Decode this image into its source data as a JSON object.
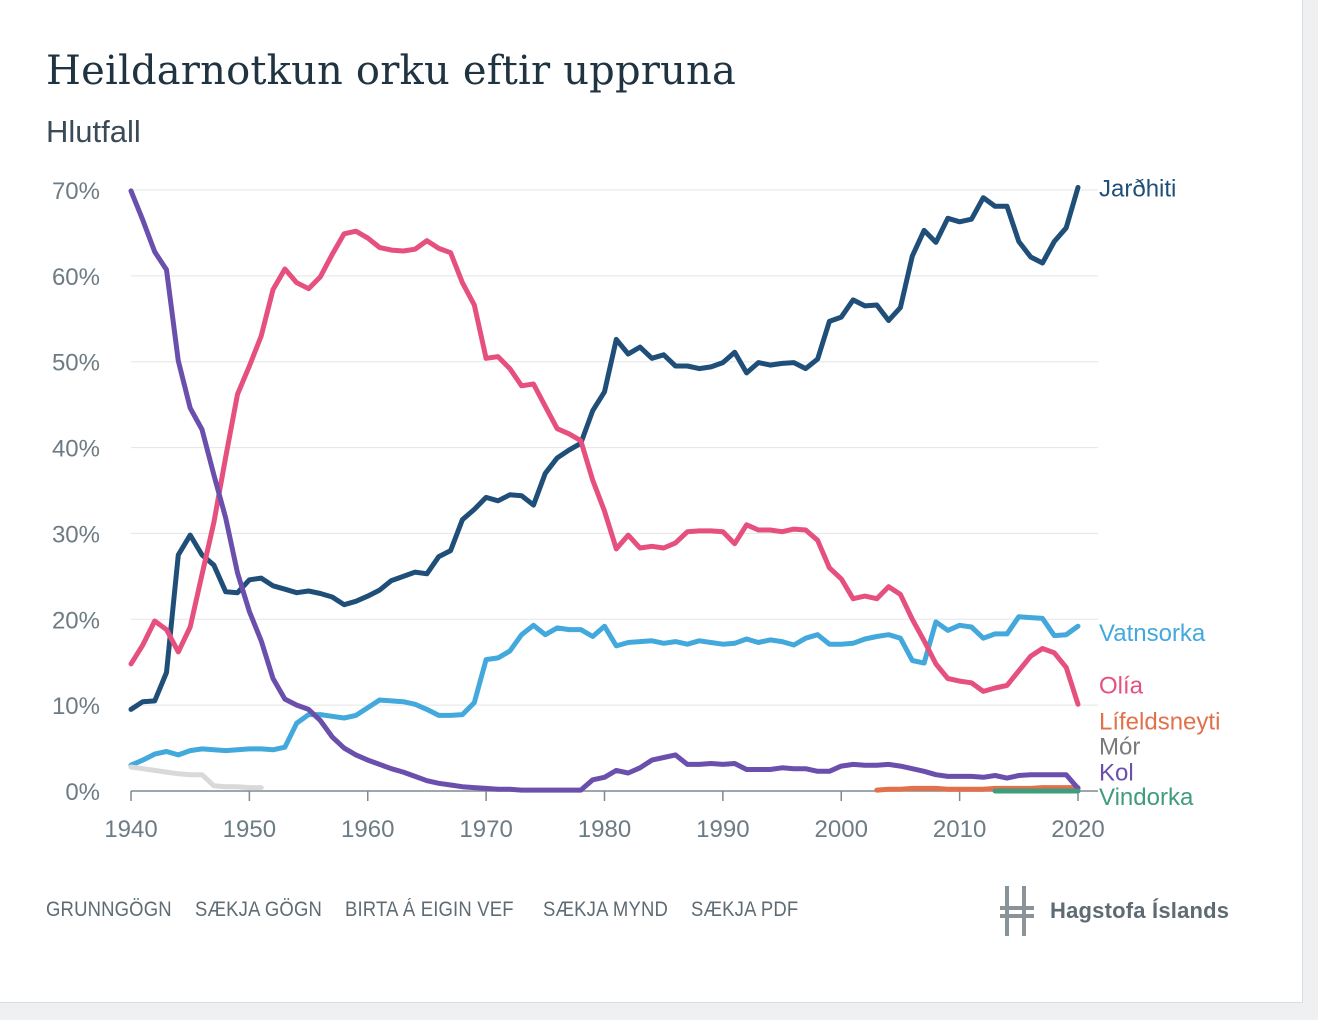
{
  "title": "Heildarnotkun orku eftir uppruna",
  "subtitle": "Hlutfall",
  "footer": {
    "links": [
      "GRUNNGÖGN",
      "SÆKJA GÖGN",
      "BIRTA Á EIGIN VEF",
      "SÆKJA MYND",
      "SÆKJA PDF"
    ],
    "brand": "Hagstofa Íslands"
  },
  "chart_data": {
    "type": "line",
    "xlim": [
      1940,
      2020
    ],
    "ylim": [
      0,
      70
    ],
    "x_ticks": [
      "1940",
      "1950",
      "1960",
      "1970",
      "1980",
      "1990",
      "2000",
      "2010",
      "2020"
    ],
    "y_ticks": [
      "0%",
      "10%",
      "20%",
      "30%",
      "40%",
      "50%",
      "60%",
      "70%"
    ],
    "grid": "horizontal",
    "legend": "right-end labels",
    "series": [
      {
        "name": "Jarðhiti",
        "color": "#1f4e79",
        "label_value": 70.3,
        "x_start": 1940,
        "values": [
          9.5,
          10.4,
          10.5,
          13.8,
          27.5,
          29.8,
          27.5,
          26.3,
          23.2,
          23.1,
          24.6,
          24.8,
          23.9,
          23.5,
          23.1,
          23.3,
          23.0,
          22.6,
          21.7,
          22.1,
          22.7,
          23.4,
          24.5,
          25.0,
          25.5,
          25.3,
          27.3,
          28.0,
          31.6,
          32.8,
          34.2,
          33.8,
          34.5,
          34.4,
          33.3,
          37.0,
          38.8,
          39.7,
          40.5,
          44.3,
          46.5,
          52.6,
          50.9,
          51.7,
          50.4,
          50.8,
          49.5,
          49.5,
          49.2,
          49.4,
          49.9,
          51.1,
          48.7,
          49.9,
          49.6,
          49.8,
          49.9,
          49.2,
          50.3,
          54.7,
          55.2,
          57.2,
          56.5,
          56.6,
          54.8,
          56.3,
          62.3,
          65.3,
          63.9,
          66.7,
          66.3,
          66.6,
          69.1,
          68.1,
          68.1,
          64.0,
          62.2,
          61.5,
          64.0,
          65.6,
          70.3
        ]
      },
      {
        "name": "Vatnsorka",
        "color": "#43a9dc",
        "label_value": 18.5,
        "x_start": 1940,
        "values": [
          3.0,
          3.6,
          4.3,
          4.6,
          4.2,
          4.7,
          4.9,
          4.8,
          4.7,
          4.8,
          4.9,
          4.9,
          4.8,
          5.1,
          7.9,
          8.9,
          8.9,
          8.7,
          8.5,
          8.8,
          9.7,
          10.6,
          10.5,
          10.4,
          10.1,
          9.5,
          8.8,
          8.8,
          8.9,
          10.3,
          15.3,
          15.5,
          16.3,
          18.2,
          19.3,
          18.2,
          19.0,
          18.8,
          18.8,
          18.0,
          19.2,
          16.9,
          17.3,
          17.4,
          17.5,
          17.2,
          17.4,
          17.1,
          17.5,
          17.3,
          17.1,
          17.2,
          17.7,
          17.3,
          17.6,
          17.4,
          17.0,
          17.8,
          18.2,
          17.1,
          17.1,
          17.2,
          17.7,
          18.0,
          18.2,
          17.8,
          15.2,
          14.9,
          19.7,
          18.7,
          19.3,
          19.1,
          17.8,
          18.3,
          18.3,
          20.3,
          20.2,
          20.1,
          18.1,
          18.2,
          19.2
        ]
      },
      {
        "name": "Olía",
        "color": "#e6507f",
        "label_value": 12.4,
        "x_start": 1940,
        "values": [
          14.8,
          17.0,
          19.8,
          18.8,
          16.2,
          19.1,
          25.2,
          31.3,
          38.9,
          46.2,
          49.5,
          53.0,
          58.4,
          60.8,
          59.2,
          58.5,
          59.9,
          62.5,
          64.9,
          65.2,
          64.4,
          63.3,
          63.0,
          62.9,
          63.1,
          64.1,
          63.2,
          62.7,
          59.2,
          56.6,
          50.4,
          50.6,
          49.2,
          47.2,
          47.4,
          44.8,
          42.2,
          41.6,
          40.8,
          36.2,
          32.6,
          28.2,
          29.8,
          28.3,
          28.5,
          28.3,
          28.9,
          30.2,
          30.3,
          30.3,
          30.2,
          28.8,
          31.0,
          30.4,
          30.4,
          30.2,
          30.5,
          30.4,
          29.2,
          26.0,
          24.7,
          22.4,
          22.7,
          22.4,
          23.8,
          22.9,
          20.0,
          17.5,
          14.8,
          13.1,
          12.8,
          12.6,
          11.6,
          12.0,
          12.3,
          14.0,
          15.7,
          16.6,
          16.1,
          14.4,
          10.1
        ]
      },
      {
        "name": "Lífeldsneyti",
        "color": "#e2704a",
        "label_value": 8.2,
        "x_start": 2003,
        "values": [
          0.1,
          0.2,
          0.2,
          0.3,
          0.3,
          0.3,
          0.2,
          0.2,
          0.2,
          0.2,
          0.3,
          0.3,
          0.3,
          0.3,
          0.4,
          0.4,
          0.4,
          0.4
        ]
      },
      {
        "name": "Mór",
        "color": "#7a7a7a",
        "label_value": 5.3,
        "x_start": 1940,
        "values": [
          2.8,
          2.6,
          2.4,
          2.2,
          2.0,
          1.9,
          1.9,
          0.6,
          0.5,
          0.5,
          0.4,
          0.4
        ]
      },
      {
        "name": "Kol",
        "color": "#6a4fad",
        "label_value": 2.3,
        "x_start": 1940,
        "values": [
          69.9,
          66.5,
          62.8,
          60.7,
          50.1,
          44.6,
          42.1,
          36.8,
          31.8,
          25.4,
          20.9,
          17.5,
          13.1,
          10.7,
          10.0,
          9.5,
          8.2,
          6.3,
          5.0,
          4.2,
          3.6,
          3.1,
          2.6,
          2.2,
          1.7,
          1.2,
          0.9,
          0.7,
          0.5,
          0.4,
          0.3,
          0.2,
          0.2,
          0.1,
          0.1,
          0.1,
          0.1,
          0.1,
          0.1,
          1.3,
          1.6,
          2.4,
          2.1,
          2.7,
          3.6,
          3.9,
          4.2,
          3.1,
          3.1,
          3.2,
          3.1,
          3.2,
          2.5,
          2.5,
          2.5,
          2.7,
          2.6,
          2.6,
          2.3,
          2.3,
          2.9,
          3.1,
          3.0,
          3.0,
          3.1,
          2.9,
          2.6,
          2.3,
          1.9,
          1.7,
          1.7,
          1.7,
          1.6,
          1.8,
          1.5,
          1.8,
          1.9,
          1.9,
          1.9,
          1.9,
          0.3
        ]
      },
      {
        "name": "Vindorka",
        "color": "#3f9c7c",
        "label_value": -0.6,
        "x_start": 2013,
        "values": [
          0.0,
          0.0,
          0.0,
          0.0,
          0.0,
          0.0,
          0.0,
          0.0
        ]
      }
    ]
  }
}
